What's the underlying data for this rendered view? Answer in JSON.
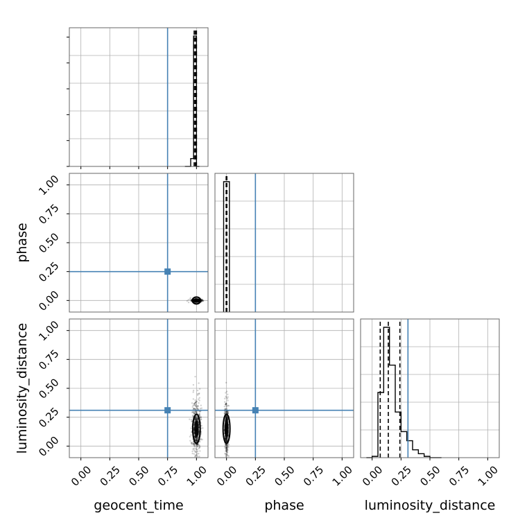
{
  "chart_data": {
    "type": "corner",
    "parameters": [
      "geocent_time",
      "phase",
      "luminosity_distance"
    ],
    "axis_range": [
      -0.1,
      1.1
    ],
    "tick_values": [
      0.0,
      0.25,
      0.5,
      0.75,
      1.0
    ],
    "tick_labels": [
      "0.00",
      "0.25",
      "0.50",
      "0.75",
      "1.00"
    ],
    "grid": true,
    "truth_color": "#4682b4",
    "truths": {
      "geocent_time": 0.75,
      "phase": 0.25,
      "luminosity_distance": 0.31
    },
    "histograms": {
      "geocent_time": {
        "bins": [
          0.9,
          0.95,
          0.975,
          1.0,
          1.025
        ],
        "counts": [
          0,
          0.06,
          1.0,
          0
        ],
        "quantiles": [
          0.98,
          0.99,
          1.0
        ]
      },
      "phase": {
        "bins": [
          -0.025,
          0.0,
          0.025
        ],
        "counts": [
          1.0,
          1.0
        ],
        "quantiles": [
          -0.003,
          0.0,
          0.003
        ]
      },
      "luminosity_distance": {
        "bins": [
          -0.05,
          0.0,
          0.05,
          0.1,
          0.15,
          0.2,
          0.25,
          0.3,
          0.35,
          0.4,
          0.45,
          0.5,
          0.55,
          0.6
        ],
        "counts": [
          0,
          0.01,
          0.5,
          1.0,
          0.71,
          0.35,
          0.2,
          0.13,
          0.06,
          0.03,
          0.01,
          0,
          0
        ],
        "quantiles": [
          0.07,
          0.14,
          0.24
        ]
      }
    },
    "scatter_2d": {
      "phase_vs_geocent_time": {
        "x_center": 1.0,
        "x_spread": 0.02,
        "y_center": 0.0,
        "y_spread": 0.005
      },
      "luminosity_distance_vs_geocent_time": {
        "x_center": 1.0,
        "x_spread": 0.018,
        "y_center": 0.15,
        "y_spread": 0.09
      },
      "luminosity_distance_vs_phase": {
        "x_center": 0.0,
        "x_spread": 0.008,
        "y_center": 0.15,
        "y_spread": 0.09
      }
    }
  }
}
